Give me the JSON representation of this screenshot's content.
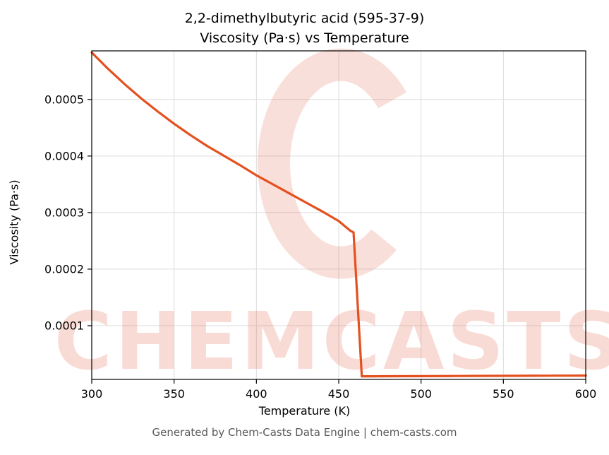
{
  "title_line1": "2,2-dimethylbutyric acid (595-37-9)",
  "title_line2": "Viscosity (Pa·s) vs Temperature",
  "footer_text": "Generated by Chem-Casts Data Engine | chem-casts.com",
  "watermark": {
    "text": "CHEMCASTS",
    "color": "#e25a40",
    "opacity": 0.22
  },
  "chart_data": {
    "type": "line",
    "title": "2,2-dimethylbutyric acid (595-37-9) Viscosity (Pa·s) vs Temperature",
    "xlabel": "Temperature (K)",
    "ylabel": "Viscosity (Pa·s)",
    "line_color": "#e4501e",
    "grid": true,
    "xlim": [
      300,
      600
    ],
    "ylim": [
      5e-06,
      0.000586
    ],
    "xticks": [
      300,
      350,
      400,
      450,
      500,
      550,
      600
    ],
    "yticks": [
      0.0001,
      0.0002,
      0.0003,
      0.0004,
      0.0005
    ],
    "ytick_labels": [
      "0.0001",
      "0.0002",
      "0.0003",
      "0.0004",
      "0.0005"
    ],
    "series_name": "viscosity",
    "x": [
      300,
      310,
      320,
      330,
      340,
      350,
      360,
      370,
      380,
      390,
      400,
      410,
      420,
      430,
      440,
      450,
      457,
      459,
      464,
      470,
      480,
      500,
      520,
      540,
      560,
      580,
      600
    ],
    "y": [
      0.000583,
      0.000554,
      0.000527,
      0.000502,
      0.000479,
      0.000457,
      0.000437,
      0.000418,
      0.000401,
      0.000384,
      0.000366,
      0.00035,
      0.000334,
      0.000318,
      0.000302,
      0.000285,
      0.000268,
      0.000265,
      1.05e-05,
      1.05e-05,
      1.06e-05,
      1.08e-05,
      1.1e-05,
      1.12e-05,
      1.14e-05,
      1.16e-05,
      1.18e-05
    ]
  }
}
